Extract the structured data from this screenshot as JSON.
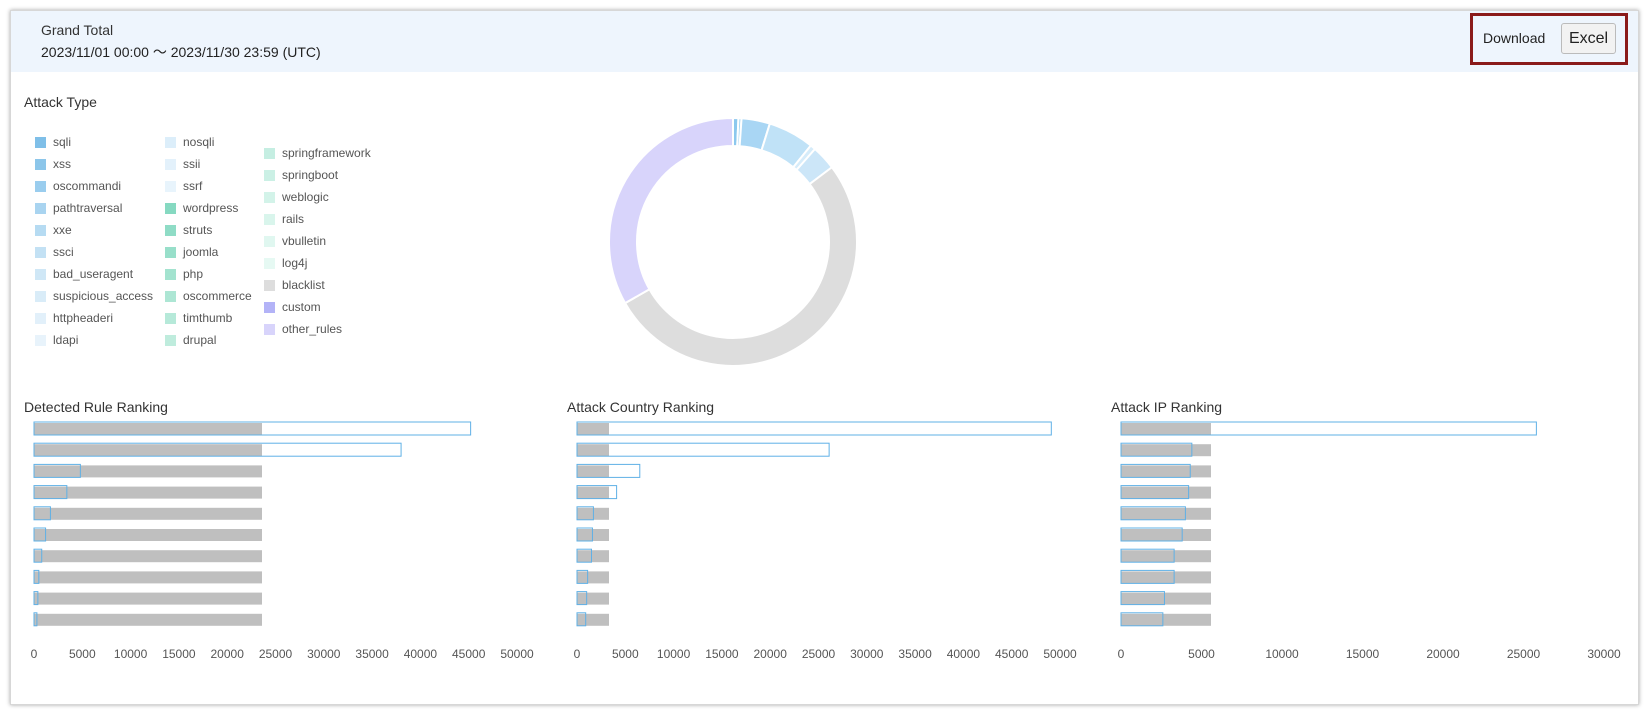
{
  "header": {
    "title": "Grand Total",
    "date_range": "2023/11/01 00:00 〜 2023/11/30 23:59 (UTC)",
    "download_label": "Download",
    "excel_button": "Excel"
  },
  "attack_type": {
    "title": "Attack Type",
    "legend": [
      {
        "label": "sqli",
        "color": "#7fbfe8"
      },
      {
        "label": "xss",
        "color": "#8cc6ea"
      },
      {
        "label": "oscommandi",
        "color": "#9acdee"
      },
      {
        "label": "pathtraversal",
        "color": "#a9d4f0"
      },
      {
        "label": "xxe",
        "color": "#b6dbf2"
      },
      {
        "label": "ssci",
        "color": "#c3e1f4"
      },
      {
        "label": "bad_useragent",
        "color": "#cfe7f6"
      },
      {
        "label": "suspicious_access",
        "color": "#d9ecf8"
      },
      {
        "label": "httpheaderi",
        "color": "#e2f0fa"
      },
      {
        "label": "ldapi",
        "color": "#e8f3fb"
      },
      {
        "label": "nosqli",
        "color": "#dceefa"
      },
      {
        "label": "ssii",
        "color": "#e3f1fb"
      },
      {
        "label": "ssrf",
        "color": "#e8f4fc"
      },
      {
        "label": "wordpress",
        "color": "#86d9c1"
      },
      {
        "label": "struts",
        "color": "#8fdcc6"
      },
      {
        "label": "joomla",
        "color": "#98dfca"
      },
      {
        "label": "php",
        "color": "#a3e3cf"
      },
      {
        "label": "oscommerce",
        "color": "#ade6d4"
      },
      {
        "label": "timthumb",
        "color": "#b6e9d9"
      },
      {
        "label": "drupal",
        "color": "#bfecdd"
      },
      {
        "label": "springframework",
        "color": "#c5eee2"
      },
      {
        "label": "springboot",
        "color": "#cbf0e5"
      },
      {
        "label": "weblogic",
        "color": "#d3f3e9"
      },
      {
        "label": "rails",
        "color": "#d9f5ec"
      },
      {
        "label": "vbulletin",
        "color": "#e0f7f0"
      },
      {
        "label": "log4j",
        "color": "#e6f9f3"
      },
      {
        "label": "blacklist",
        "color": "#dddddd"
      },
      {
        "label": "custom",
        "color": "#b3b3f7"
      },
      {
        "label": "other_rules",
        "color": "#d8d4fb"
      }
    ]
  },
  "chart_data": [
    {
      "type": "pie",
      "donut": true,
      "slices": [
        {
          "label": "sqli",
          "value": 0.7,
          "color": "#8cc8ee"
        },
        {
          "label": "xss",
          "value": 0.4,
          "color": "#a5d5f3"
        },
        {
          "label": "oscommandi",
          "value": 3.7,
          "color": "#a9d6f4"
        },
        {
          "label": "pathtraversal",
          "value": 6.0,
          "color": "#c0e2f7"
        },
        {
          "label": "xxe",
          "value": 0.7,
          "color": "#d6ecfa"
        },
        {
          "label": "ssci",
          "value": 3.2,
          "color": "#cce6f8"
        },
        {
          "label": "blacklist",
          "value": 52.1,
          "color": "#dddddd"
        },
        {
          "label": "other_rules",
          "value": 33.2,
          "color": "#d8d4fb"
        }
      ]
    },
    {
      "type": "bar",
      "orientation": "horizontal",
      "title": "Detected Rule Ranking",
      "values": [
        45200,
        38000,
        4800,
        3400,
        1700,
        1200,
        800,
        500,
        400,
        300
      ],
      "xticks": [
        0,
        5000,
        10000,
        15000,
        20000,
        25000,
        30000,
        35000,
        40000,
        45000,
        50000
      ],
      "xlim": [
        0,
        50000
      ]
    },
    {
      "type": "bar",
      "orientation": "horizontal",
      "title": "Attack Country Ranking",
      "values": [
        49100,
        26100,
        6500,
        4100,
        1700,
        1600,
        1500,
        1100,
        1000,
        900
      ],
      "xticks": [
        0,
        5000,
        10000,
        15000,
        20000,
        25000,
        30000,
        35000,
        40000,
        45000,
        50000
      ],
      "xlim": [
        0,
        50000
      ]
    },
    {
      "type": "bar",
      "orientation": "horizontal",
      "title": "Attack IP Ranking",
      "values": [
        25800,
        4400,
        4300,
        4200,
        4000,
        3800,
        3300,
        3300,
        2700,
        2600
      ],
      "xticks": [
        0,
        5000,
        10000,
        15000,
        20000,
        25000,
        30000
      ],
      "xlim": [
        0,
        30000
      ]
    }
  ],
  "rankings": {
    "rule_title": "Detected Rule Ranking",
    "country_title": "Attack Country Ranking",
    "ip_title": "Attack IP Ranking"
  }
}
